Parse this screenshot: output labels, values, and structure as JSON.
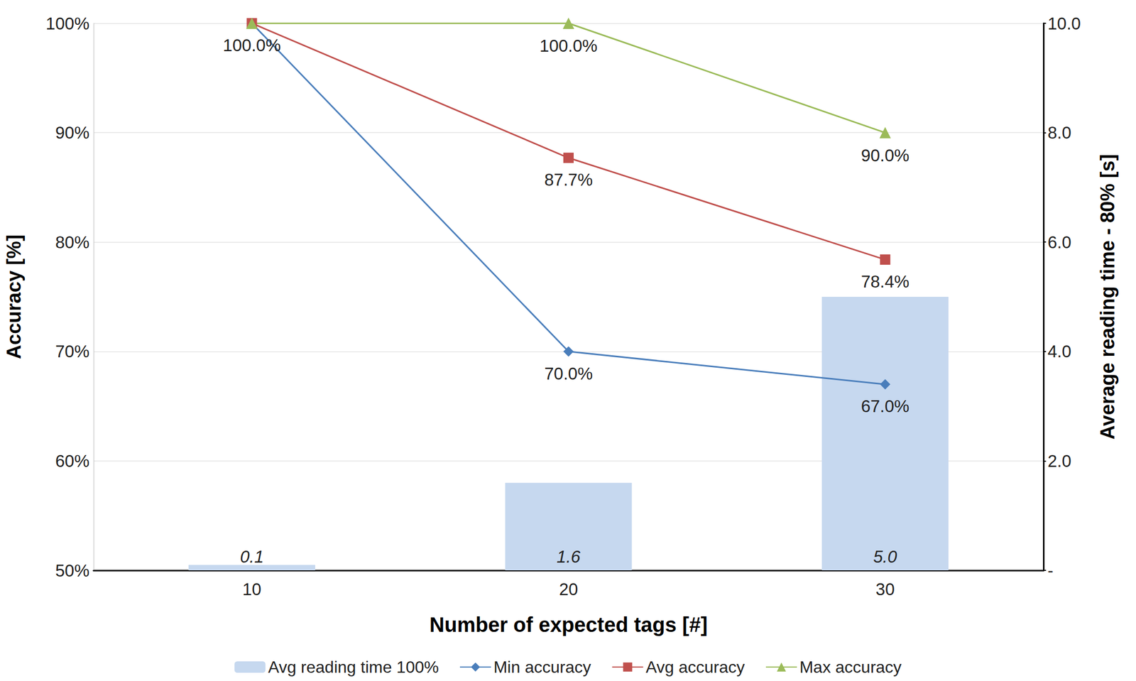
{
  "chart_data": {
    "type": "line",
    "x_label": "Number of expected tags [#]",
    "y_label": "Accuracy [%]",
    "y2_label": "Average reading time - 80% [s]",
    "categories": [
      "10",
      "20",
      "30"
    ],
    "ylim": [
      50,
      100
    ],
    "yticks": [
      {
        "value": 50,
        "label": "50%"
      },
      {
        "value": 60,
        "label": "60%"
      },
      {
        "value": 70,
        "label": "70%"
      },
      {
        "value": 80,
        "label": "80%"
      },
      {
        "value": 90,
        "label": "90%"
      },
      {
        "value": 100,
        "label": "100%"
      }
    ],
    "y2lim": [
      0,
      10
    ],
    "y2ticks": [
      {
        "value": 0,
        "label": "-"
      },
      {
        "value": 2,
        "label": "2.0"
      },
      {
        "value": 4,
        "label": "4.0"
      },
      {
        "value": 6,
        "label": "6.0"
      },
      {
        "value": 8,
        "label": "8.0"
      },
      {
        "value": 10,
        "label": "10.0"
      }
    ],
    "grid": true,
    "legend": "bottom",
    "data_labels": true,
    "series": [
      {
        "name": "Avg reading time 100%",
        "type": "bar",
        "axis": "y2",
        "color": "#c6d8ef",
        "values": [
          0.1,
          1.6,
          5.0
        ],
        "value_labels": [
          "0.1",
          "1.6",
          "5.0"
        ]
      },
      {
        "name": "Min accuracy",
        "type": "line",
        "color": "#4a7ebb",
        "marker": "diamond",
        "line_style": "solid",
        "values": [
          100,
          70,
          67
        ],
        "value_labels": [
          null,
          "70.0%",
          "67.0%"
        ]
      },
      {
        "name": "Avg accuracy",
        "type": "line",
        "color": "#c0504d",
        "marker": "square",
        "line_style": "solid",
        "values": [
          100,
          87.7,
          78.4
        ],
        "value_labels": [
          "100.0%",
          "87.7%",
          "78.4%"
        ]
      },
      {
        "name": "Max accuracy",
        "type": "line",
        "color": "#9bbb59",
        "marker": "triangle",
        "line_style": "solid",
        "values": [
          100,
          100,
          90
        ],
        "value_labels": [
          null,
          "100.0%",
          "90.0%"
        ]
      }
    ]
  }
}
